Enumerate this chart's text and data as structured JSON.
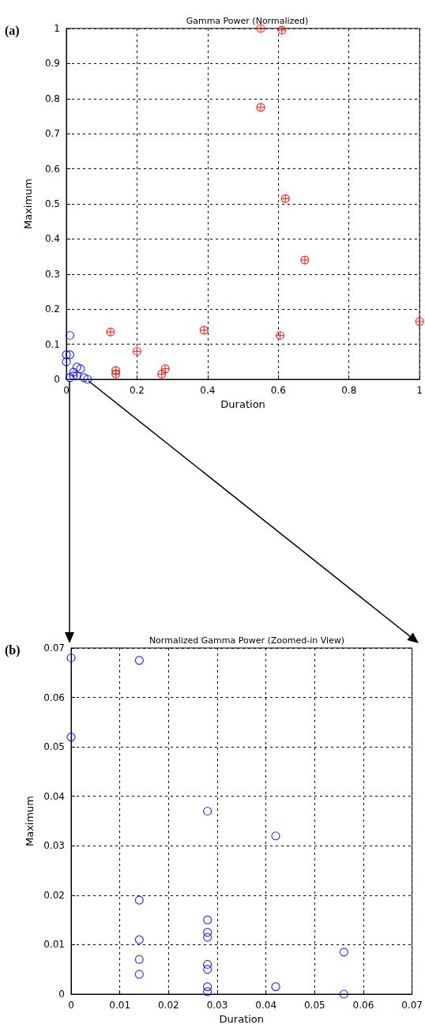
{
  "chart_data": [
    {
      "type": "scatter",
      "title": "Gamma Power (Normalized)",
      "xlabel": "Duration",
      "ylabel": "Maximum",
      "annotations": [
        "(a)"
      ],
      "xlim": [
        0,
        1
      ],
      "xticks": [
        0,
        0.2,
        0.4,
        0.6,
        0.8,
        1
      ],
      "ylim": [
        0,
        1
      ],
      "yticks": [
        0,
        0.1,
        0.2,
        0.3,
        0.4,
        0.5,
        0.6,
        0.7,
        0.8,
        0.9,
        1
      ],
      "grid": true,
      "series": [
        {
          "color": "#ff0000",
          "marker": "cross",
          "x": [
            0.55,
            0.61,
            0.55,
            0.62,
            0.675,
            0.125,
            0.14,
            0.14,
            0.2,
            0.27,
            0.28,
            0.39,
            0.605,
            1.0
          ],
          "values": [
            1.0,
            0.995,
            0.775,
            0.515,
            0.34,
            0.135,
            0.025,
            0.015,
            0.08,
            0.015,
            0.03,
            0.14,
            0.125,
            0.165
          ]
        },
        {
          "color": "#0000ff",
          "marker": "circle",
          "x": [
            0.01,
            0,
            0.01,
            0,
            0.03,
            0.04,
            0.02,
            0.02,
            0.03,
            0.05,
            0.06,
            0.01
          ],
          "values": [
            0.125,
            0.07,
            0.07,
            0.05,
            0.035,
            0.03,
            0.02,
            0.01,
            0.01,
            0.005,
            0.0,
            0.005
          ]
        }
      ]
    },
    {
      "type": "scatter",
      "title": "Normalized Gamma Power (Zoomed-in View)",
      "xlabel": "Duration",
      "ylabel": "Maximum",
      "annotations": [
        "(b)"
      ],
      "xlim": [
        0,
        0.07
      ],
      "xticks": [
        0,
        0.01,
        0.02,
        0.03,
        0.04,
        0.05,
        0.06,
        0.07
      ],
      "ylim": [
        0,
        0.07
      ],
      "yticks": [
        0,
        0.01,
        0.02,
        0.03,
        0.04,
        0.05,
        0.06,
        0.07
      ],
      "grid": true,
      "series": [
        {
          "color": "#0000ff",
          "marker": "circle",
          "x": [
            0,
            0,
            0.014,
            0.014,
            0.014,
            0.014,
            0.014,
            0.028,
            0.028,
            0.028,
            0.028,
            0.028,
            0.028,
            0.028,
            0.028,
            0.042,
            0.042,
            0.056,
            0.056
          ],
          "values": [
            0.068,
            0.052,
            0.0675,
            0.019,
            0.011,
            0.007,
            0.004,
            0.037,
            0.015,
            0.0125,
            0.0115,
            0.006,
            0.005,
            0.0015,
            0.0005,
            0.032,
            0.0015,
            0.0085,
            0
          ]
        }
      ]
    }
  ]
}
